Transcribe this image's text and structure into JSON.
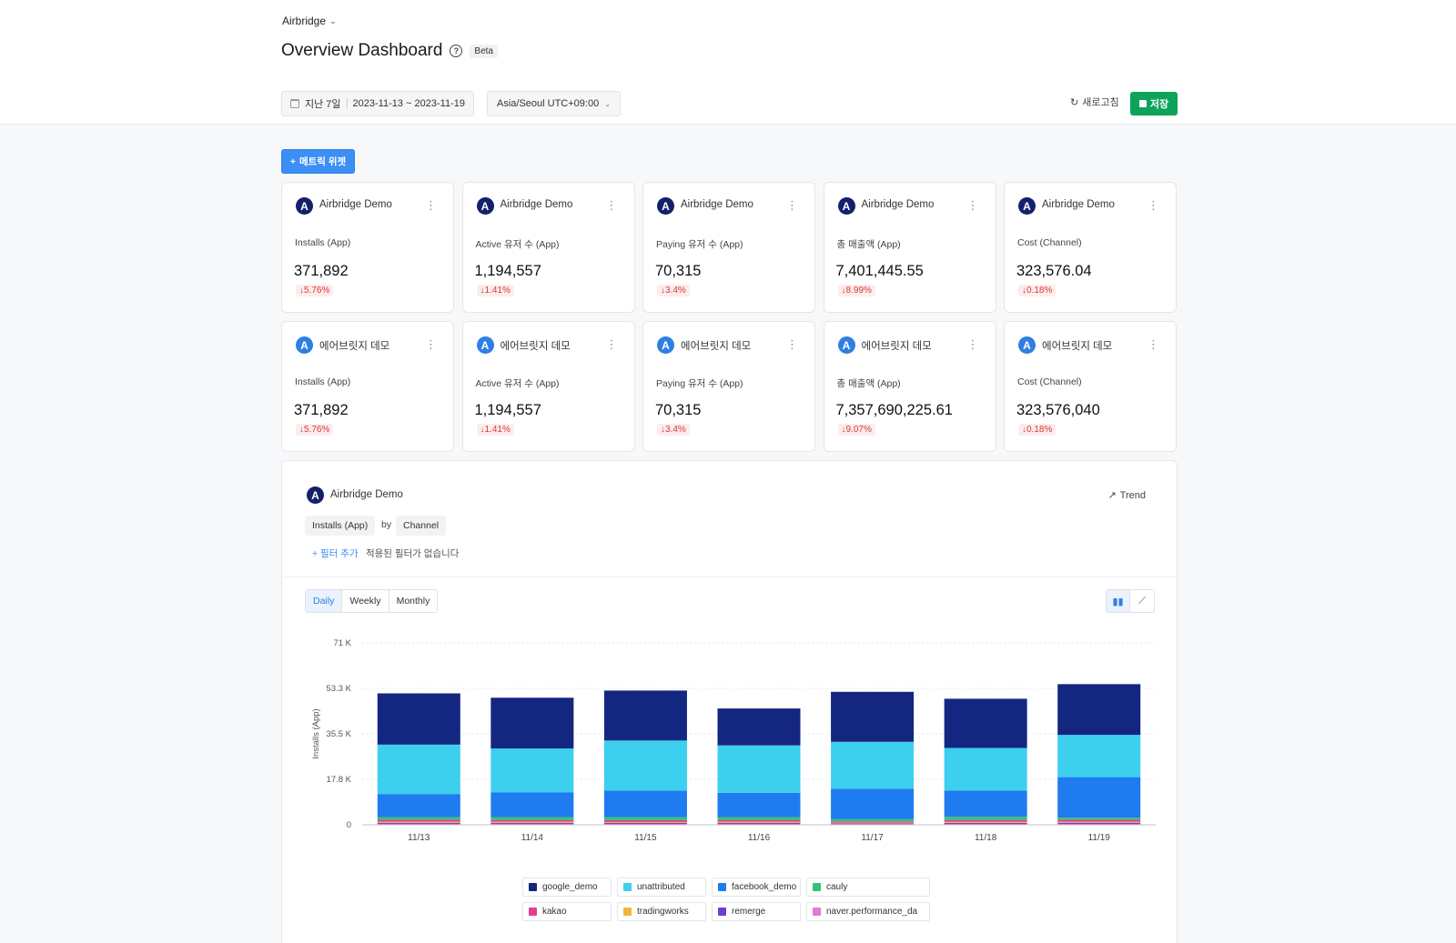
{
  "header": {
    "app_switch": "Airbridge",
    "title": "Overview Dashboard",
    "beta": "Beta",
    "date_preset": "지난 7일",
    "date_range": "2023-11-13 ~ 2023-11-19",
    "timezone": "Asia/Seoul UTC+09:00",
    "refresh": "새로고침",
    "save": "저장"
  },
  "add_widget": "메트릭 위젯",
  "cards_row1": [
    {
      "app": "Airbridge Demo",
      "metric": "Installs (App)",
      "value": "371,892",
      "change": "5.76%"
    },
    {
      "app": "Airbridge Demo",
      "metric": "Active 유저 수 (App)",
      "value": "1,194,557",
      "change": "1.41%"
    },
    {
      "app": "Airbridge Demo",
      "metric": "Paying 유저 수 (App)",
      "value": "70,315",
      "change": "3.4%"
    },
    {
      "app": "Airbridge Demo",
      "metric": "총 매출액 (App)",
      "value": "7,401,445.55",
      "change": "8.99%"
    },
    {
      "app": "Airbridge Demo",
      "metric": "Cost (Channel)",
      "value": "323,576.04",
      "change": "0.18%"
    }
  ],
  "cards_row2": [
    {
      "app": "에어브릿지 데모",
      "metric": "Installs (App)",
      "value": "371,892",
      "change": "5.76%"
    },
    {
      "app": "에어브릿지 데모",
      "metric": "Active 유저 수 (App)",
      "value": "1,194,557",
      "change": "1.41%"
    },
    {
      "app": "에어브릿지 데모",
      "metric": "Paying 유저 수 (App)",
      "value": "70,315",
      "change": "3.4%"
    },
    {
      "app": "에어브릿지 데모",
      "metric": "총 매출액 (App)",
      "value": "7,357,690,225.61",
      "change": "9.07%"
    },
    {
      "app": "에어브릿지 데모",
      "metric": "Cost (Channel)",
      "value": "323,576,040",
      "change": "0.18%"
    }
  ],
  "panel": {
    "app": "Airbridge Demo",
    "trend": "Trend",
    "metric_pill": "Installs (App)",
    "by": "by",
    "group_pill": "Channel",
    "add_filter": "+ 필터 추가",
    "no_filter": "적용된 필터가 없습니다",
    "periods": [
      "Daily",
      "Weekly",
      "Monthly"
    ],
    "active_period": "Daily"
  },
  "colors": {
    "accent": "#3b8ff6",
    "save": "#0ea35b",
    "down": "#d43a3a"
  },
  "chart_data": {
    "type": "bar",
    "stacked": true,
    "ylabel": "Installs (App)",
    "ylim": [
      0,
      71000
    ],
    "yticks": [
      "0",
      "17.8 K",
      "35.5 K",
      "53.3 K",
      "71 K"
    ],
    "ytick_values": [
      0,
      17800,
      35500,
      53300,
      71000
    ],
    "categories": [
      "11/13",
      "11/14",
      "11/15",
      "11/16",
      "11/17",
      "11/18",
      "11/19"
    ],
    "series": [
      {
        "name": "naver.performance_da",
        "color": "#e07ad6",
        "values": [
          300,
          300,
          300,
          300,
          300,
          300,
          300
        ]
      },
      {
        "name": "remerge",
        "color": "#6b3fd6",
        "values": [
          400,
          400,
          400,
          400,
          300,
          400,
          500
        ]
      },
      {
        "name": "tradingworks",
        "color": "#f2b53a",
        "values": [
          500,
          500,
          400,
          500,
          300,
          500,
          400
        ]
      },
      {
        "name": "kakao",
        "color": "#e23d8f",
        "values": [
          800,
          700,
          700,
          700,
          400,
          700,
          800
        ]
      },
      {
        "name": "cauly",
        "color": "#34c27a",
        "values": [
          1000,
          1100,
          1200,
          1100,
          900,
          1200,
          800
        ]
      },
      {
        "name": "facebook_demo",
        "color": "#1e7bf0",
        "values": [
          9000,
          9600,
          10300,
          9500,
          11900,
          10300,
          15800
        ]
      },
      {
        "name": "unattributed",
        "color": "#3ccfee",
        "values": [
          19300,
          17200,
          19600,
          18500,
          18300,
          16600,
          16500
        ]
      },
      {
        "name": "google_demo",
        "color": "#132680",
        "values": [
          20000,
          19800,
          19500,
          14400,
          19500,
          19200,
          19800
        ]
      }
    ]
  },
  "legend": [
    {
      "label": "google_demo",
      "color": "#132680"
    },
    {
      "label": "unattributed",
      "color": "#3ccfee"
    },
    {
      "label": "facebook_demo",
      "color": "#1e7bf0"
    },
    {
      "label": "cauly",
      "color": "#34c27a"
    },
    {
      "label": "kakao",
      "color": "#e23d8f"
    },
    {
      "label": "tradingworks",
      "color": "#f2b53a"
    },
    {
      "label": "remerge",
      "color": "#6b3fd6"
    },
    {
      "label": "naver.performance_da",
      "color": "#e07ad6"
    }
  ]
}
